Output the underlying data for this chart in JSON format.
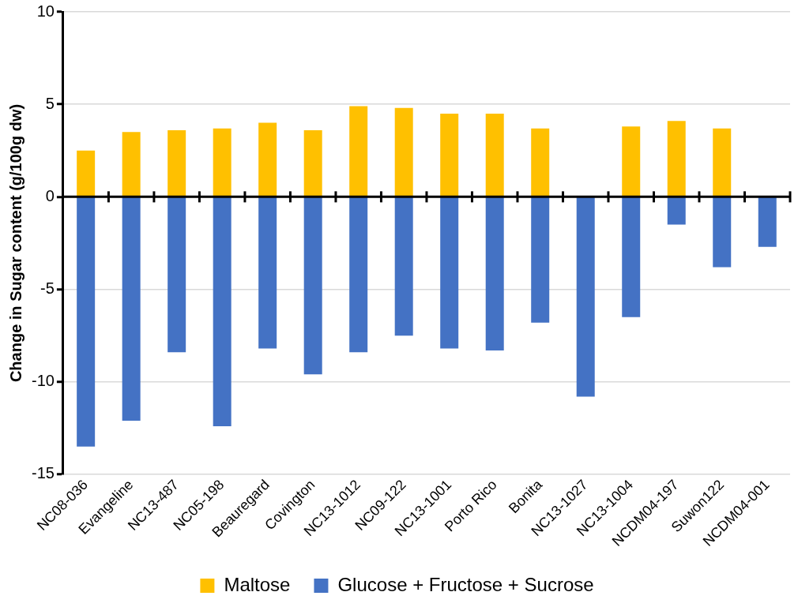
{
  "chart_data": {
    "type": "bar",
    "ylabel": "Change in Sugar content (g/100g dw)",
    "categories": [
      "NC08-036",
      "Evangeline",
      "NC13-487",
      "NC05-198",
      "Beauregard",
      "Covington",
      "NC13-1012",
      "NC09-122",
      "NC13-1001",
      "Porto Rico",
      "Bonita",
      "NC13-1027",
      "NC13-1004",
      "NCDM04-197",
      "Suwon122",
      "NCDM04-001"
    ],
    "series": [
      {
        "name": "Maltose",
        "color": "#ffc000",
        "values": [
          2.5,
          3.5,
          3.6,
          3.7,
          4.0,
          3.6,
          4.9,
          4.8,
          4.5,
          4.5,
          3.7,
          null,
          3.8,
          4.1,
          3.7,
          null
        ]
      },
      {
        "name": "Glucose + Fructose + Sucrose",
        "color": "#4472c4",
        "values": [
          -13.5,
          -12.1,
          -8.4,
          -12.4,
          -8.2,
          -9.6,
          -8.4,
          -7.5,
          -8.2,
          -8.3,
          -6.8,
          -10.8,
          -6.5,
          -1.5,
          -3.8,
          -2.7
        ]
      }
    ],
    "ylim": [
      -15,
      10
    ],
    "yticks": [
      -15,
      -10,
      -5,
      0,
      5,
      10
    ],
    "grid": "y",
    "legend": "bottom",
    "stacked": true
  }
}
